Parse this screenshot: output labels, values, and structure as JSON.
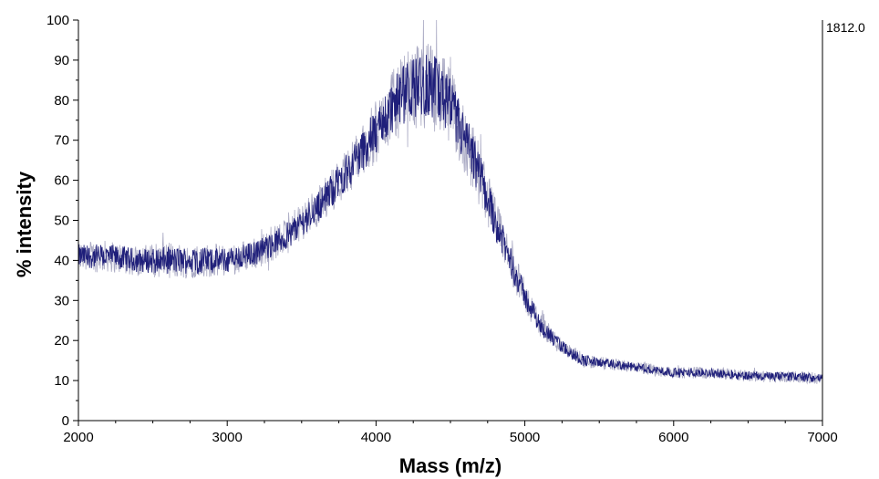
{
  "chart_data": {
    "type": "line",
    "xlabel": "Mass (m/z)",
    "ylabel": "% intensity",
    "max_intensity_label": "1812.0",
    "xlim": [
      2000,
      7000
    ],
    "ylim": [
      0,
      100
    ],
    "x_ticks": [
      2000,
      3000,
      4000,
      5000,
      6000,
      7000
    ],
    "y_ticks": [
      0,
      10,
      20,
      30,
      40,
      50,
      60,
      70,
      80,
      90,
      100
    ],
    "grid": false,
    "line_color": "#1f1f7a",
    "noise_color": "#9a9ab8",
    "series": [
      {
        "x": [
          2000,
          2200,
          2400,
          2600,
          2800,
          3000,
          3200,
          3400,
          3600,
          3800,
          4000,
          4100,
          4200,
          4300,
          4400,
          4500,
          4600,
          4700,
          4800,
          4900,
          5000,
          5100,
          5200,
          5300,
          5400,
          5500,
          5600,
          5800,
          6000,
          6200,
          6400,
          6600,
          6800,
          7000
        ],
        "values": [
          41,
          41,
          40,
          40,
          40,
          40,
          42,
          46,
          53,
          62,
          72,
          78,
          82,
          84,
          83,
          78,
          70,
          61,
          50,
          40,
          31,
          24,
          20,
          17,
          15,
          14.5,
          14,
          13,
          12,
          12,
          11.5,
          11,
          11,
          10.5
        ],
        "noise_amplitude": [
          4,
          4,
          4,
          4.5,
          4.5,
          4,
          4,
          4.5,
          5,
          6,
          8,
          9,
          10,
          11,
          11,
          10,
          9,
          8,
          6,
          5,
          4,
          3,
          2.5,
          2,
          2,
          1.5,
          1.5,
          1.5,
          1.5,
          1.5,
          1.5,
          1.5,
          1.5,
          1.5
        ]
      }
    ]
  }
}
